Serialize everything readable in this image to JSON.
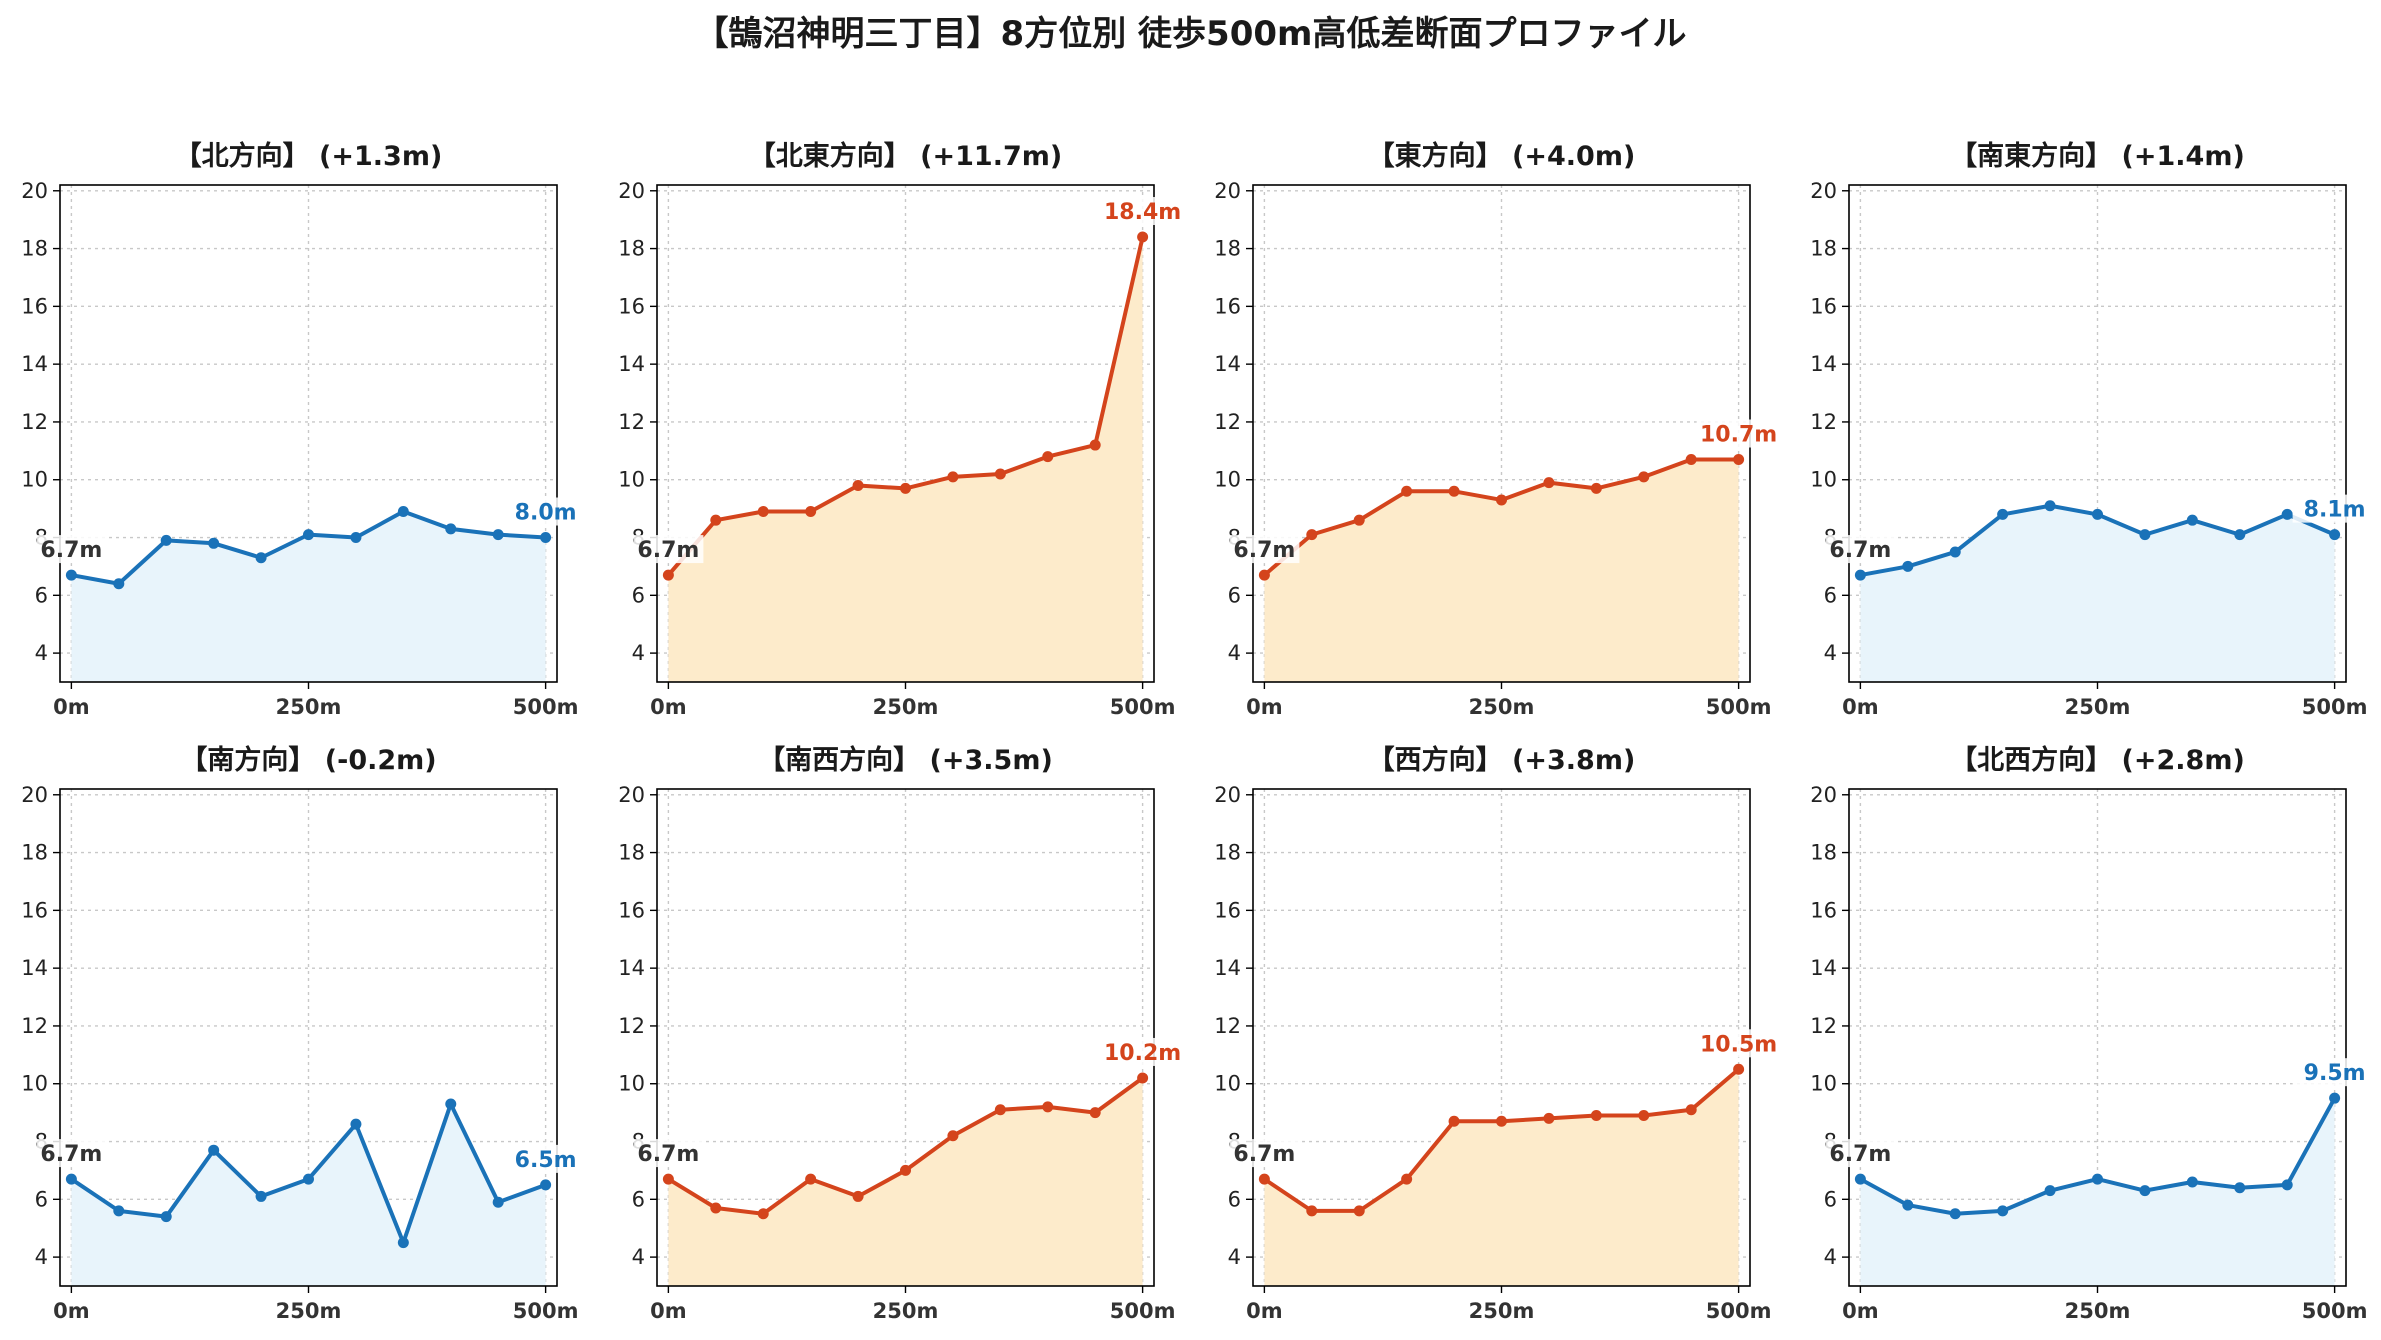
{
  "title": "【鵠沼神明三丁目】8方位別 徒歩500m高低差断面プロファイル",
  "colors": {
    "up_line": "#d4441c",
    "up_fill": "#fdebcb",
    "down_line": "#1a72b8",
    "down_fill": "#e8f4fb",
    "start_label": "#333333"
  },
  "chart_data": [
    {
      "type": "area",
      "title": "【北方向】 (+1.3m)",
      "trend": "down",
      "x": [
        0,
        50,
        100,
        150,
        200,
        250,
        300,
        350,
        400,
        450,
        500
      ],
      "values": [
        6.7,
        6.4,
        7.9,
        7.8,
        7.3,
        8.1,
        8.0,
        8.9,
        8.3,
        8.1,
        8.0
      ],
      "start_label": "6.7m",
      "end_label": "8.0m",
      "xticks": [
        "0m",
        "250m",
        "500m"
      ],
      "yticks": [
        "4",
        "6",
        "8",
        "10",
        "12",
        "14",
        "16",
        "18",
        "20"
      ],
      "ylim": [
        3,
        20.2
      ],
      "grid": true
    },
    {
      "type": "area",
      "title": "【北東方向】 (+11.7m)",
      "trend": "up",
      "x": [
        0,
        50,
        100,
        150,
        200,
        250,
        300,
        350,
        400,
        450,
        500
      ],
      "values": [
        6.7,
        8.6,
        8.9,
        8.9,
        9.8,
        9.7,
        10.1,
        10.2,
        10.8,
        11.2,
        18.4
      ],
      "start_label": "6.7m",
      "end_label": "18.4m",
      "xticks": [
        "0m",
        "250m",
        "500m"
      ],
      "yticks": [
        "4",
        "6",
        "8",
        "10",
        "12",
        "14",
        "16",
        "18",
        "20"
      ],
      "ylim": [
        3,
        20.2
      ],
      "grid": true
    },
    {
      "type": "area",
      "title": "【東方向】 (+4.0m)",
      "trend": "up",
      "x": [
        0,
        50,
        100,
        150,
        200,
        250,
        300,
        350,
        400,
        450,
        500
      ],
      "values": [
        6.7,
        8.1,
        8.6,
        9.6,
        9.6,
        9.3,
        9.9,
        9.7,
        10.1,
        10.7,
        10.7
      ],
      "start_label": "6.7m",
      "end_label": "10.7m",
      "xticks": [
        "0m",
        "250m",
        "500m"
      ],
      "yticks": [
        "4",
        "6",
        "8",
        "10",
        "12",
        "14",
        "16",
        "18",
        "20"
      ],
      "ylim": [
        3,
        20.2
      ],
      "grid": true
    },
    {
      "type": "area",
      "title": "【南東方向】 (+1.4m)",
      "trend": "down",
      "x": [
        0,
        50,
        100,
        150,
        200,
        250,
        300,
        350,
        400,
        450,
        500
      ],
      "values": [
        6.7,
        7.0,
        7.5,
        8.8,
        9.1,
        8.8,
        8.1,
        8.6,
        8.1,
        8.8,
        8.1
      ],
      "start_label": "6.7m",
      "end_label": "8.1m",
      "xticks": [
        "0m",
        "250m",
        "500m"
      ],
      "yticks": [
        "4",
        "6",
        "8",
        "10",
        "12",
        "14",
        "16",
        "18",
        "20"
      ],
      "ylim": [
        3,
        20.2
      ],
      "grid": true
    },
    {
      "type": "area",
      "title": "【南方向】 (-0.2m)",
      "trend": "down",
      "x": [
        0,
        50,
        100,
        150,
        200,
        250,
        300,
        350,
        400,
        450,
        500
      ],
      "values": [
        6.7,
        5.6,
        5.4,
        7.7,
        6.1,
        6.7,
        8.6,
        4.5,
        9.3,
        5.9,
        6.5
      ],
      "start_label": "6.7m",
      "end_label": "6.5m",
      "xticks": [
        "0m",
        "250m",
        "500m"
      ],
      "yticks": [
        "4",
        "6",
        "8",
        "10",
        "12",
        "14",
        "16",
        "18",
        "20"
      ],
      "ylim": [
        3,
        20.2
      ],
      "grid": true
    },
    {
      "type": "area",
      "title": "【南西方向】 (+3.5m)",
      "trend": "up",
      "x": [
        0,
        50,
        100,
        150,
        200,
        250,
        300,
        350,
        400,
        450,
        500
      ],
      "values": [
        6.7,
        5.7,
        5.5,
        6.7,
        6.1,
        7.0,
        8.2,
        9.1,
        9.2,
        9.0,
        10.2
      ],
      "start_label": "6.7m",
      "end_label": "10.2m",
      "xticks": [
        "0m",
        "250m",
        "500m"
      ],
      "yticks": [
        "4",
        "6",
        "8",
        "10",
        "12",
        "14",
        "16",
        "18",
        "20"
      ],
      "ylim": [
        3,
        20.2
      ],
      "grid": true
    },
    {
      "type": "area",
      "title": "【西方向】 (+3.8m)",
      "trend": "up",
      "x": [
        0,
        50,
        100,
        150,
        200,
        250,
        300,
        350,
        400,
        450,
        500
      ],
      "values": [
        6.7,
        5.6,
        5.6,
        6.7,
        8.7,
        8.7,
        8.8,
        8.9,
        8.9,
        9.1,
        10.5
      ],
      "start_label": "6.7m",
      "end_label": "10.5m",
      "xticks": [
        "0m",
        "250m",
        "500m"
      ],
      "yticks": [
        "4",
        "6",
        "8",
        "10",
        "12",
        "14",
        "16",
        "18",
        "20"
      ],
      "ylim": [
        3,
        20.2
      ],
      "grid": true
    },
    {
      "type": "area",
      "title": "【北西方向】 (+2.8m)",
      "trend": "down",
      "x": [
        0,
        50,
        100,
        150,
        200,
        250,
        300,
        350,
        400,
        450,
        500
      ],
      "values": [
        6.7,
        5.8,
        5.5,
        5.6,
        6.3,
        6.7,
        6.3,
        6.6,
        6.4,
        6.5,
        9.5
      ],
      "start_label": "6.7m",
      "end_label": "9.5m",
      "xticks": [
        "0m",
        "250m",
        "500m"
      ],
      "yticks": [
        "4",
        "6",
        "8",
        "10",
        "12",
        "14",
        "16",
        "18",
        "20"
      ],
      "ylim": [
        3,
        20.2
      ],
      "grid": true
    }
  ]
}
